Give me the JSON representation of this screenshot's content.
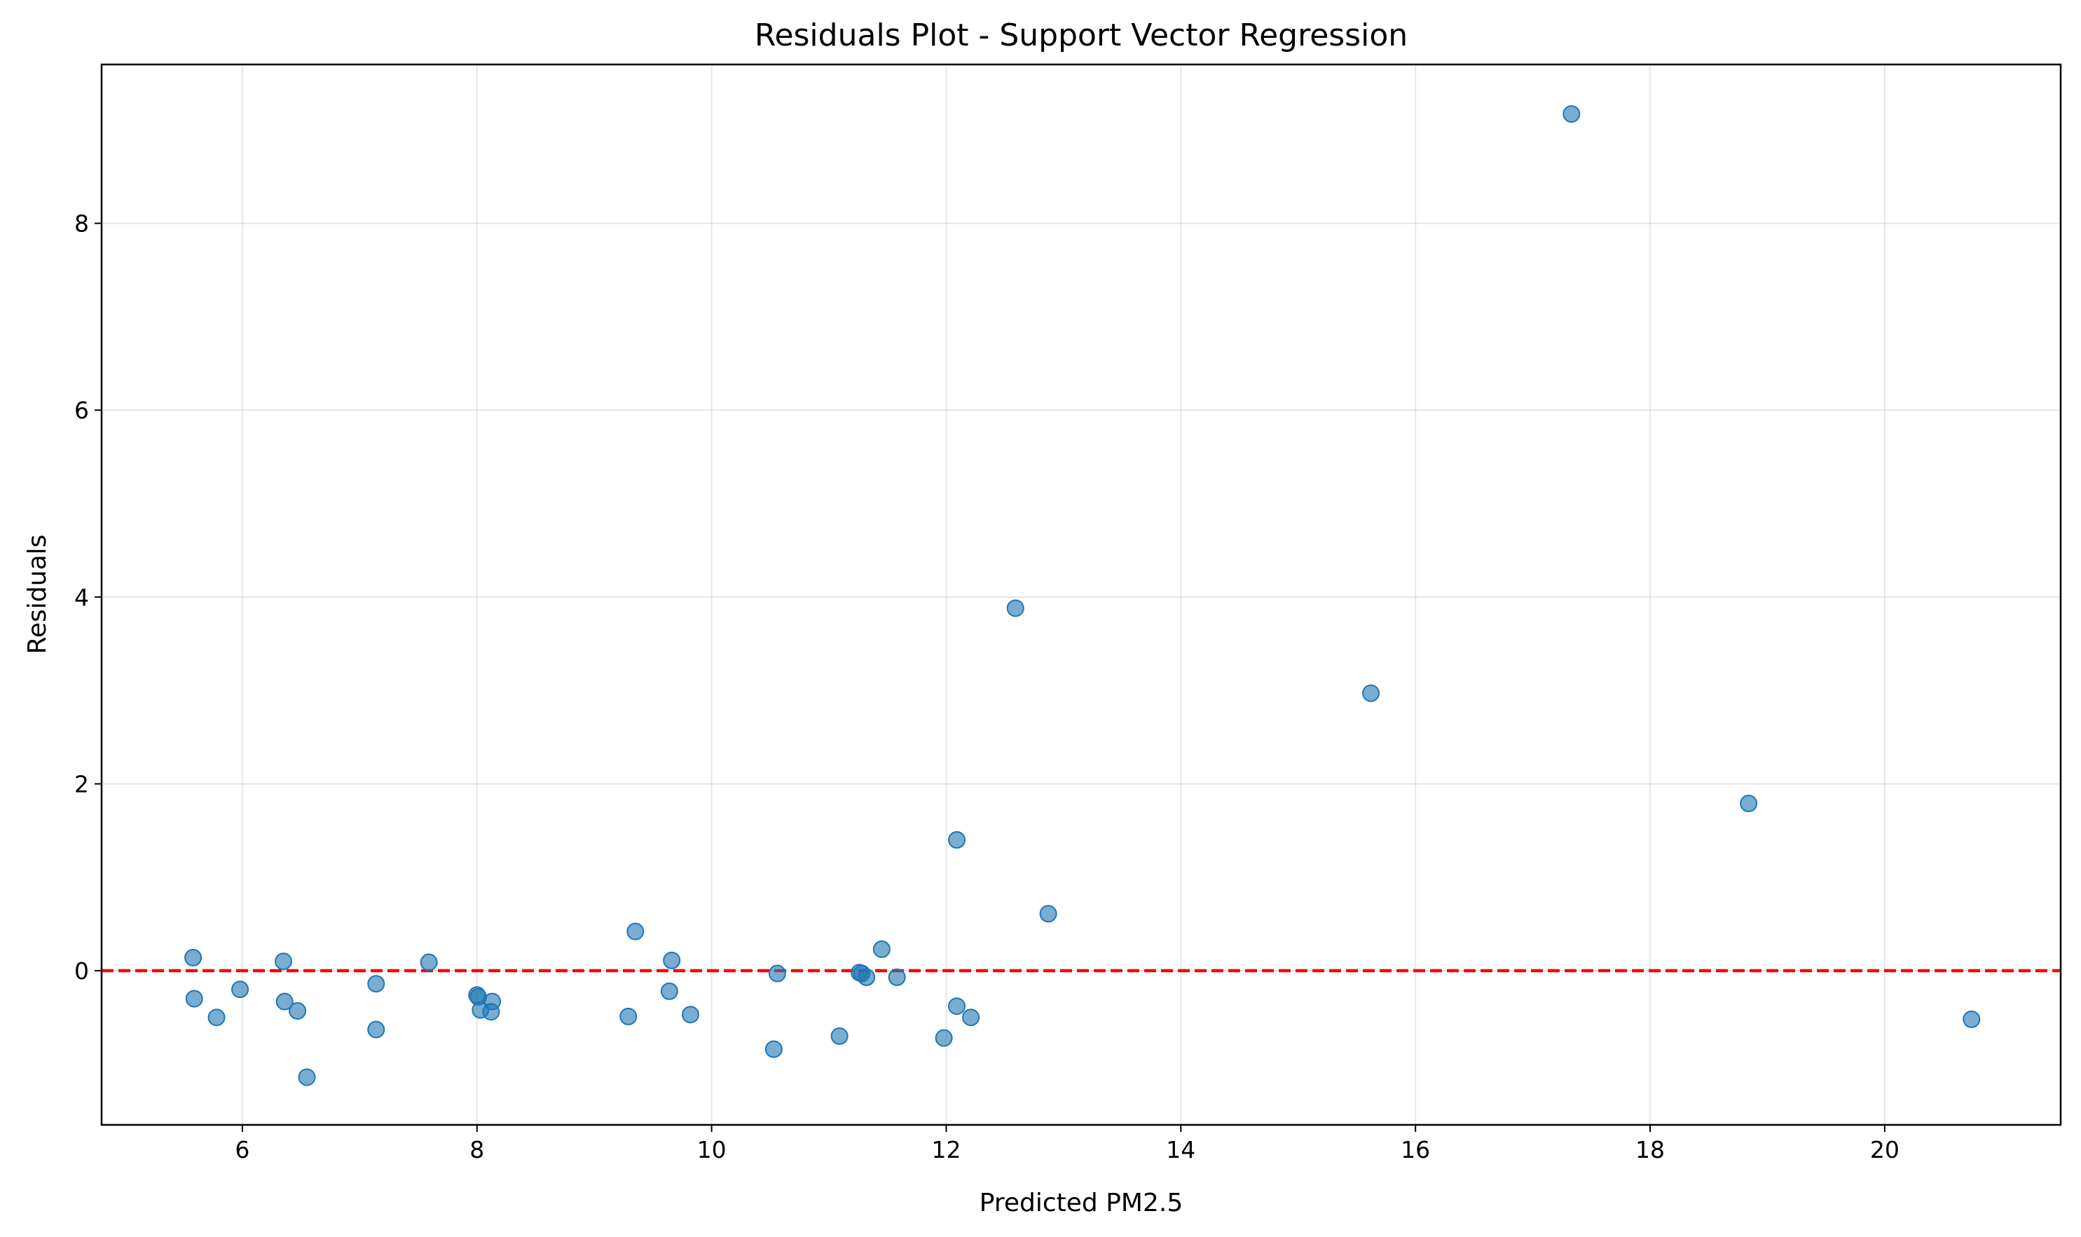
{
  "chart_data": {
    "type": "scatter",
    "title": "Residuals Plot - Support Vector Regression",
    "xlabel": "Predicted PM2.5",
    "ylabel": "Residuals",
    "xlim": [
      4.8,
      21.5
    ],
    "ylim": [
      -1.65,
      9.7
    ],
    "xticks": [
      6,
      8,
      10,
      12,
      14,
      16,
      18,
      20
    ],
    "yticks": [
      0,
      2,
      4,
      6,
      8
    ],
    "grid": true,
    "reference_line": {
      "y": 0,
      "color": "#ff0000",
      "style": "dashed"
    },
    "point_color": "#1f77b4",
    "points": [
      [
        5.58,
        0.14
      ],
      [
        5.59,
        -0.3
      ],
      [
        5.78,
        -0.5
      ],
      [
        5.98,
        -0.2
      ],
      [
        6.35,
        0.1
      ],
      [
        6.36,
        -0.33
      ],
      [
        6.47,
        -0.43
      ],
      [
        6.55,
        -1.14
      ],
      [
        7.14,
        -0.14
      ],
      [
        7.14,
        -0.63
      ],
      [
        7.59,
        0.09
      ],
      [
        8.0,
        -0.26
      ],
      [
        8.01,
        -0.28
      ],
      [
        8.03,
        -0.42
      ],
      [
        8.12,
        -0.44
      ],
      [
        8.13,
        -0.33
      ],
      [
        9.29,
        -0.49
      ],
      [
        9.35,
        0.42
      ],
      [
        9.64,
        -0.22
      ],
      [
        9.66,
        0.11
      ],
      [
        9.82,
        -0.47
      ],
      [
        10.53,
        -0.84
      ],
      [
        10.56,
        -0.03
      ],
      [
        11.09,
        -0.7
      ],
      [
        11.26,
        -0.02
      ],
      [
        11.28,
        -0.03
      ],
      [
        11.32,
        -0.07
      ],
      [
        11.45,
        0.23
      ],
      [
        11.58,
        -0.07
      ],
      [
        11.98,
        -0.72
      ],
      [
        12.09,
        1.4
      ],
      [
        12.09,
        -0.38
      ],
      [
        12.21,
        -0.5
      ],
      [
        12.59,
        3.88
      ],
      [
        12.87,
        0.61
      ],
      [
        15.62,
        2.97
      ],
      [
        17.33,
        9.17
      ],
      [
        18.84,
        1.79
      ],
      [
        20.74,
        -0.52
      ]
    ]
  }
}
